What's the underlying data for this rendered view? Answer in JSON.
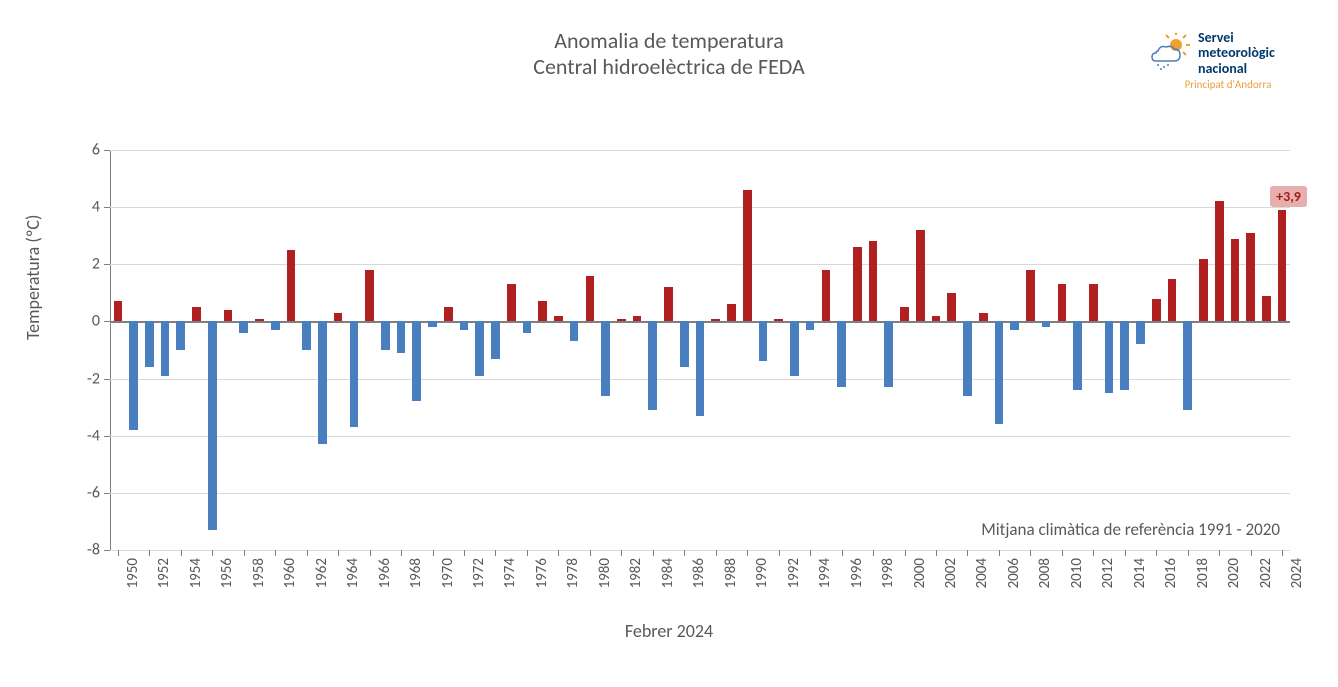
{
  "chart": {
    "type": "bar",
    "title_line1": "Anomalia de temperatura",
    "title_line2": "Central hidroelèctrica de FEDA",
    "title_fontsize": 22,
    "title_color": "#595959",
    "y_label": "Temperatura (ºC)",
    "x_label": "Febrer 2024",
    "label_fontsize": 18,
    "label_color": "#595959",
    "background_color": "#ffffff",
    "grid_color": "#d9d9d9",
    "axis_color": "#808080",
    "ylim": [
      -8,
      6
    ],
    "ytick_step": 2,
    "yticks": [
      -8,
      -6,
      -4,
      -2,
      0,
      2,
      4,
      6
    ],
    "xtick_step": 2,
    "bar_width_ratio": 0.55,
    "positive_color": "#b02020",
    "negative_color": "#4a7fbf",
    "reference_note": "Mitjana climàtica de referència 1991 - 2020",
    "callout": {
      "label": "+3,9",
      "year": 2024,
      "bg": "#e8adad",
      "fg": "#a02020"
    },
    "years": [
      1950,
      1951,
      1952,
      1953,
      1954,
      1955,
      1956,
      1957,
      1958,
      1959,
      1960,
      1961,
      1962,
      1963,
      1964,
      1965,
      1966,
      1967,
      1968,
      1969,
      1970,
      1971,
      1972,
      1973,
      1974,
      1975,
      1976,
      1977,
      1978,
      1979,
      1980,
      1981,
      1982,
      1983,
      1984,
      1985,
      1986,
      1987,
      1988,
      1989,
      1990,
      1991,
      1992,
      1993,
      1994,
      1995,
      1996,
      1997,
      1998,
      1999,
      2000,
      2001,
      2002,
      2003,
      2004,
      2005,
      2006,
      2007,
      2008,
      2009,
      2010,
      2011,
      2012,
      2013,
      2014,
      2015,
      2016,
      2017,
      2018,
      2019,
      2020,
      2021,
      2022,
      2023,
      2024
    ],
    "values": [
      0.7,
      -3.8,
      -1.6,
      -1.9,
      -1.0,
      0.5,
      -7.3,
      0.4,
      -0.4,
      0.1,
      -0.3,
      2.5,
      -1.0,
      -4.3,
      0.3,
      -3.7,
      1.8,
      -1.0,
      -1.1,
      -2.8,
      -0.2,
      0.5,
      -0.3,
      -1.9,
      -1.3,
      1.3,
      -0.4,
      0.7,
      0.2,
      -0.7,
      1.6,
      -2.6,
      0.1,
      0.2,
      -3.1,
      1.2,
      -1.6,
      -3.3,
      0.1,
      0.6,
      4.6,
      -1.4,
      0.1,
      -1.9,
      -0.3,
      1.8,
      -2.3,
      2.6,
      2.8,
      -2.3,
      0.5,
      3.2,
      0.2,
      1.0,
      -2.6,
      0.3,
      -3.6,
      -0.3,
      1.8,
      -0.2,
      1.3,
      -2.4,
      1.3,
      -2.5,
      -2.4,
      -0.8,
      0.8,
      1.5,
      -3.1,
      2.2,
      4.2,
      2.9,
      3.1,
      0.9,
      3.9
    ]
  },
  "logo": {
    "line1": "Servei",
    "line2": "meteorològic",
    "line3": "nacional",
    "sub": "Principat d'Andorra",
    "text_color": "#003a6b",
    "sub_color": "#e8a13a",
    "sun_color": "#f0a030",
    "cloud_color": "#4a7fbf"
  }
}
